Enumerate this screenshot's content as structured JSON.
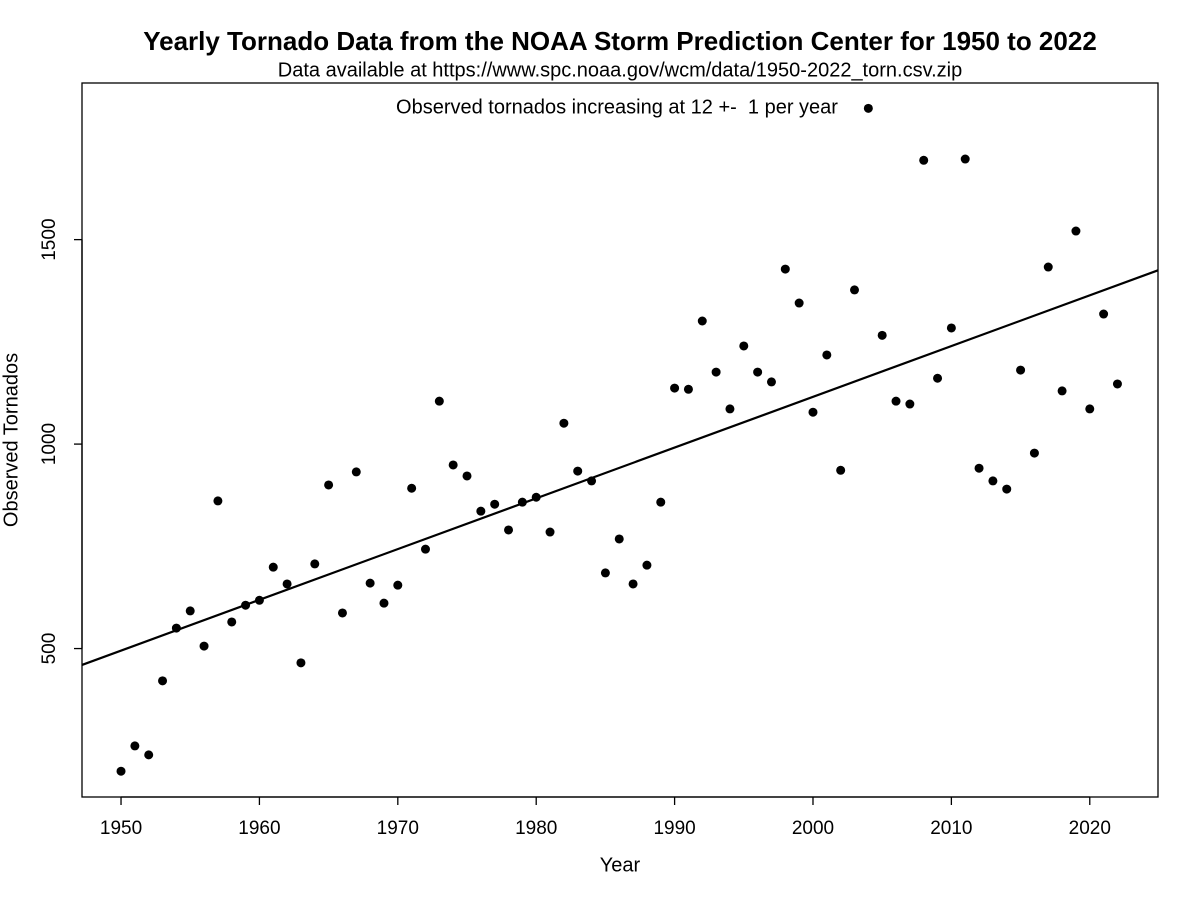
{
  "chart_data": {
    "type": "scatter",
    "title": "Yearly Tornado Data from the NOAA Storm Prediction Center for 1950 to 2022",
    "subtitle": "Data available at https://www.spc.noaa.gov/wcm/data/1950-2022_torn.csv.zip",
    "annotation": "Observed tornados increasing at 12 +-  1 per year",
    "x_label": "Year",
    "y_label": "Observed Tornados",
    "color": "#000000",
    "x": [
      1950,
      1951,
      1952,
      1953,
      1954,
      1955,
      1956,
      1957,
      1958,
      1959,
      1960,
      1961,
      1962,
      1963,
      1964,
      1965,
      1966,
      1967,
      1968,
      1969,
      1970,
      1971,
      1972,
      1973,
      1974,
      1975,
      1976,
      1977,
      1978,
      1979,
      1980,
      1981,
      1982,
      1983,
      1984,
      1985,
      1986,
      1987,
      1988,
      1989,
      1990,
      1991,
      1992,
      1993,
      1994,
      1995,
      1996,
      1997,
      1998,
      1999,
      2000,
      2001,
      2002,
      2003,
      2004,
      2005,
      2006,
      2007,
      2008,
      2009,
      2010,
      2011,
      2012,
      2013,
      2014,
      2015,
      2016,
      2017,
      2018,
      2019,
      2020,
      2021,
      2022
    ],
    "values": [
      200,
      262,
      240,
      421,
      550,
      592,
      506,
      861,
      565,
      606,
      618,
      699,
      658,
      465,
      707,
      900,
      587,
      932,
      660,
      611,
      655,
      892,
      743,
      1105,
      949,
      922,
      836,
      853,
      790,
      858,
      870,
      785,
      1051,
      934,
      910,
      685,
      768,
      658,
      704,
      858,
      1137,
      1134,
      1301,
      1176,
      1086,
      1240,
      1176,
      1152,
      1428,
      1345,
      1078,
      1218,
      936,
      1377,
      1821,
      1266,
      1105,
      1098,
      1694,
      1161,
      1284,
      1697,
      941,
      910,
      890,
      1181,
      978,
      1433,
      1130,
      1521,
      1086,
      1318,
      1147
    ],
    "trend": {
      "x": [
        1947.18,
        2024.93
      ],
      "values": [
        460,
        1425
      ]
    },
    "xlim": [
      1947.18,
      2024.93
    ],
    "ylim": [
      137,
      1883
    ],
    "xticks": [
      1950,
      1960,
      1970,
      1980,
      1990,
      2000,
      2010,
      2020
    ],
    "yticks": [
      500,
      1000,
      1500
    ]
  }
}
